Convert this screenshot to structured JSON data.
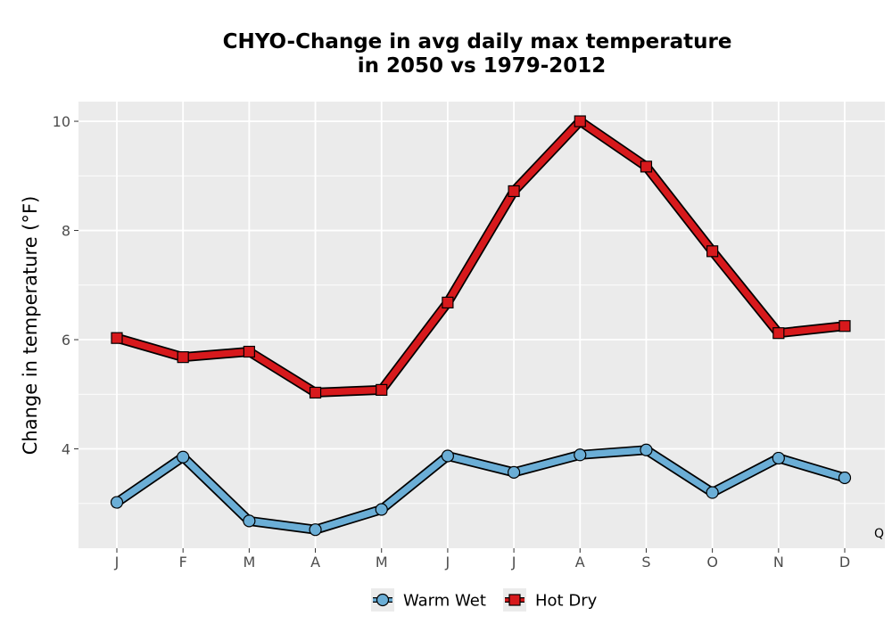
{
  "chart_data": {
    "type": "line",
    "title_line1": "CHYO-Change in avg daily max temperature",
    "title_line2": "in 2050 vs 1979-2012",
    "xlabel": "",
    "ylabel": "Change in temperature (°F)",
    "categories": [
      "J",
      "F",
      "M",
      "A",
      "M",
      "J",
      "J",
      "A",
      "S",
      "O",
      "N",
      "D"
    ],
    "ylim": [
      2.18,
      10.36
    ],
    "y_ticks": [
      4,
      6,
      8,
      10
    ],
    "grid": true,
    "legend_position": "bottom",
    "corner_label": "Q",
    "series": [
      {
        "name": "Warm Wet",
        "marker": "circle",
        "color": "#6baed6",
        "values": [
          3.02,
          3.85,
          2.68,
          2.52,
          2.89,
          3.87,
          3.57,
          3.89,
          3.98,
          3.2,
          3.83,
          3.47
        ]
      },
      {
        "name": "Hot Dry",
        "marker": "square",
        "color": "#d7191c",
        "values": [
          6.03,
          5.68,
          5.78,
          5.03,
          5.08,
          6.68,
          8.72,
          10.0,
          9.17,
          7.62,
          6.12,
          6.25
        ]
      }
    ]
  }
}
